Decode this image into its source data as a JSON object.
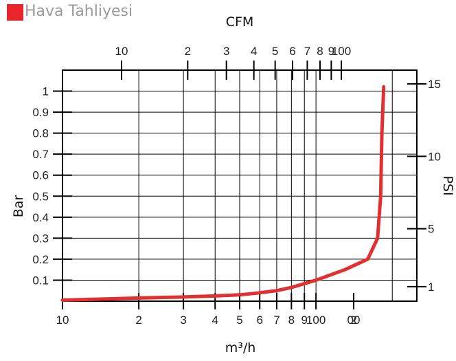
{
  "header": {
    "title": "Hava Tahliyesi",
    "accent": "#e8262a",
    "title_color": "#9a9a9a"
  },
  "chart_data": {
    "type": "line",
    "title": "",
    "top_axis_label": "CFM",
    "bottom_axis_label": "m³/h",
    "left_axis_label": "Bar",
    "right_axis_label": "PSI",
    "xscale": "log",
    "xlim_m3h": [
      10,
      250
    ],
    "bottom_ticks": [
      {
        "value": 10,
        "label": "10"
      },
      {
        "value": 20,
        "label": "2"
      },
      {
        "value": 30,
        "label": "3"
      },
      {
        "value": 40,
        "label": "4"
      },
      {
        "value": 50,
        "label": "5"
      },
      {
        "value": 60,
        "label": "6"
      },
      {
        "value": 70,
        "label": "7"
      },
      {
        "value": 80,
        "label": "8"
      },
      {
        "value": 90,
        "label": "9"
      },
      {
        "value": 100,
        "label": "100"
      },
      {
        "value": 200,
        "label": "2"
      },
      {
        "value": 300,
        "label": "00"
      }
    ],
    "top_ticks": [
      {
        "value": 10,
        "label": "10"
      },
      {
        "value": 20,
        "label": "2"
      },
      {
        "value": 30,
        "label": "3"
      },
      {
        "value": 40,
        "label": "4"
      },
      {
        "value": 50,
        "label": "5"
      },
      {
        "value": 60,
        "label": "6"
      },
      {
        "value": 70,
        "label": "7"
      },
      {
        "value": 80,
        "label": "8"
      },
      {
        "value": 90,
        "label": "9"
      },
      {
        "value": 100,
        "label": "100"
      }
    ],
    "ylim_bar": [
      0,
      1.1
    ],
    "left_ticks": [
      {
        "value": 0.1,
        "label": "0.1"
      },
      {
        "value": 0.2,
        "label": "0.2"
      },
      {
        "value": 0.3,
        "label": "0.3"
      },
      {
        "value": 0.4,
        "label": "0.4"
      },
      {
        "value": 0.5,
        "label": "0.5"
      },
      {
        "value": 0.6,
        "label": "0.6"
      },
      {
        "value": 0.7,
        "label": "0.7"
      },
      {
        "value": 0.8,
        "label": "0.8"
      },
      {
        "value": 0.9,
        "label": "0.9"
      },
      {
        "value": 1.0,
        "label": "1"
      }
    ],
    "right_ticks": [
      {
        "value": 1,
        "label": "1"
      },
      {
        "value": 5,
        "label": "5"
      },
      {
        "value": 10,
        "label": "10"
      },
      {
        "value": 15,
        "label": "15"
      }
    ],
    "grid": true,
    "series": [
      {
        "color": "#e03030",
        "points": [
          {
            "x": 10,
            "y": 0.005
          },
          {
            "x": 20,
            "y": 0.015
          },
          {
            "x": 30,
            "y": 0.02
          },
          {
            "x": 40,
            "y": 0.025
          },
          {
            "x": 50,
            "y": 0.03
          },
          {
            "x": 60,
            "y": 0.04
          },
          {
            "x": 70,
            "y": 0.05
          },
          {
            "x": 80,
            "y": 0.065
          },
          {
            "x": 100,
            "y": 0.1
          },
          {
            "x": 130,
            "y": 0.15
          },
          {
            "x": 160,
            "y": 0.2
          },
          {
            "x": 175,
            "y": 0.3
          },
          {
            "x": 180,
            "y": 0.5
          },
          {
            "x": 182,
            "y": 0.8
          },
          {
            "x": 185,
            "y": 1.02
          }
        ]
      }
    ]
  }
}
